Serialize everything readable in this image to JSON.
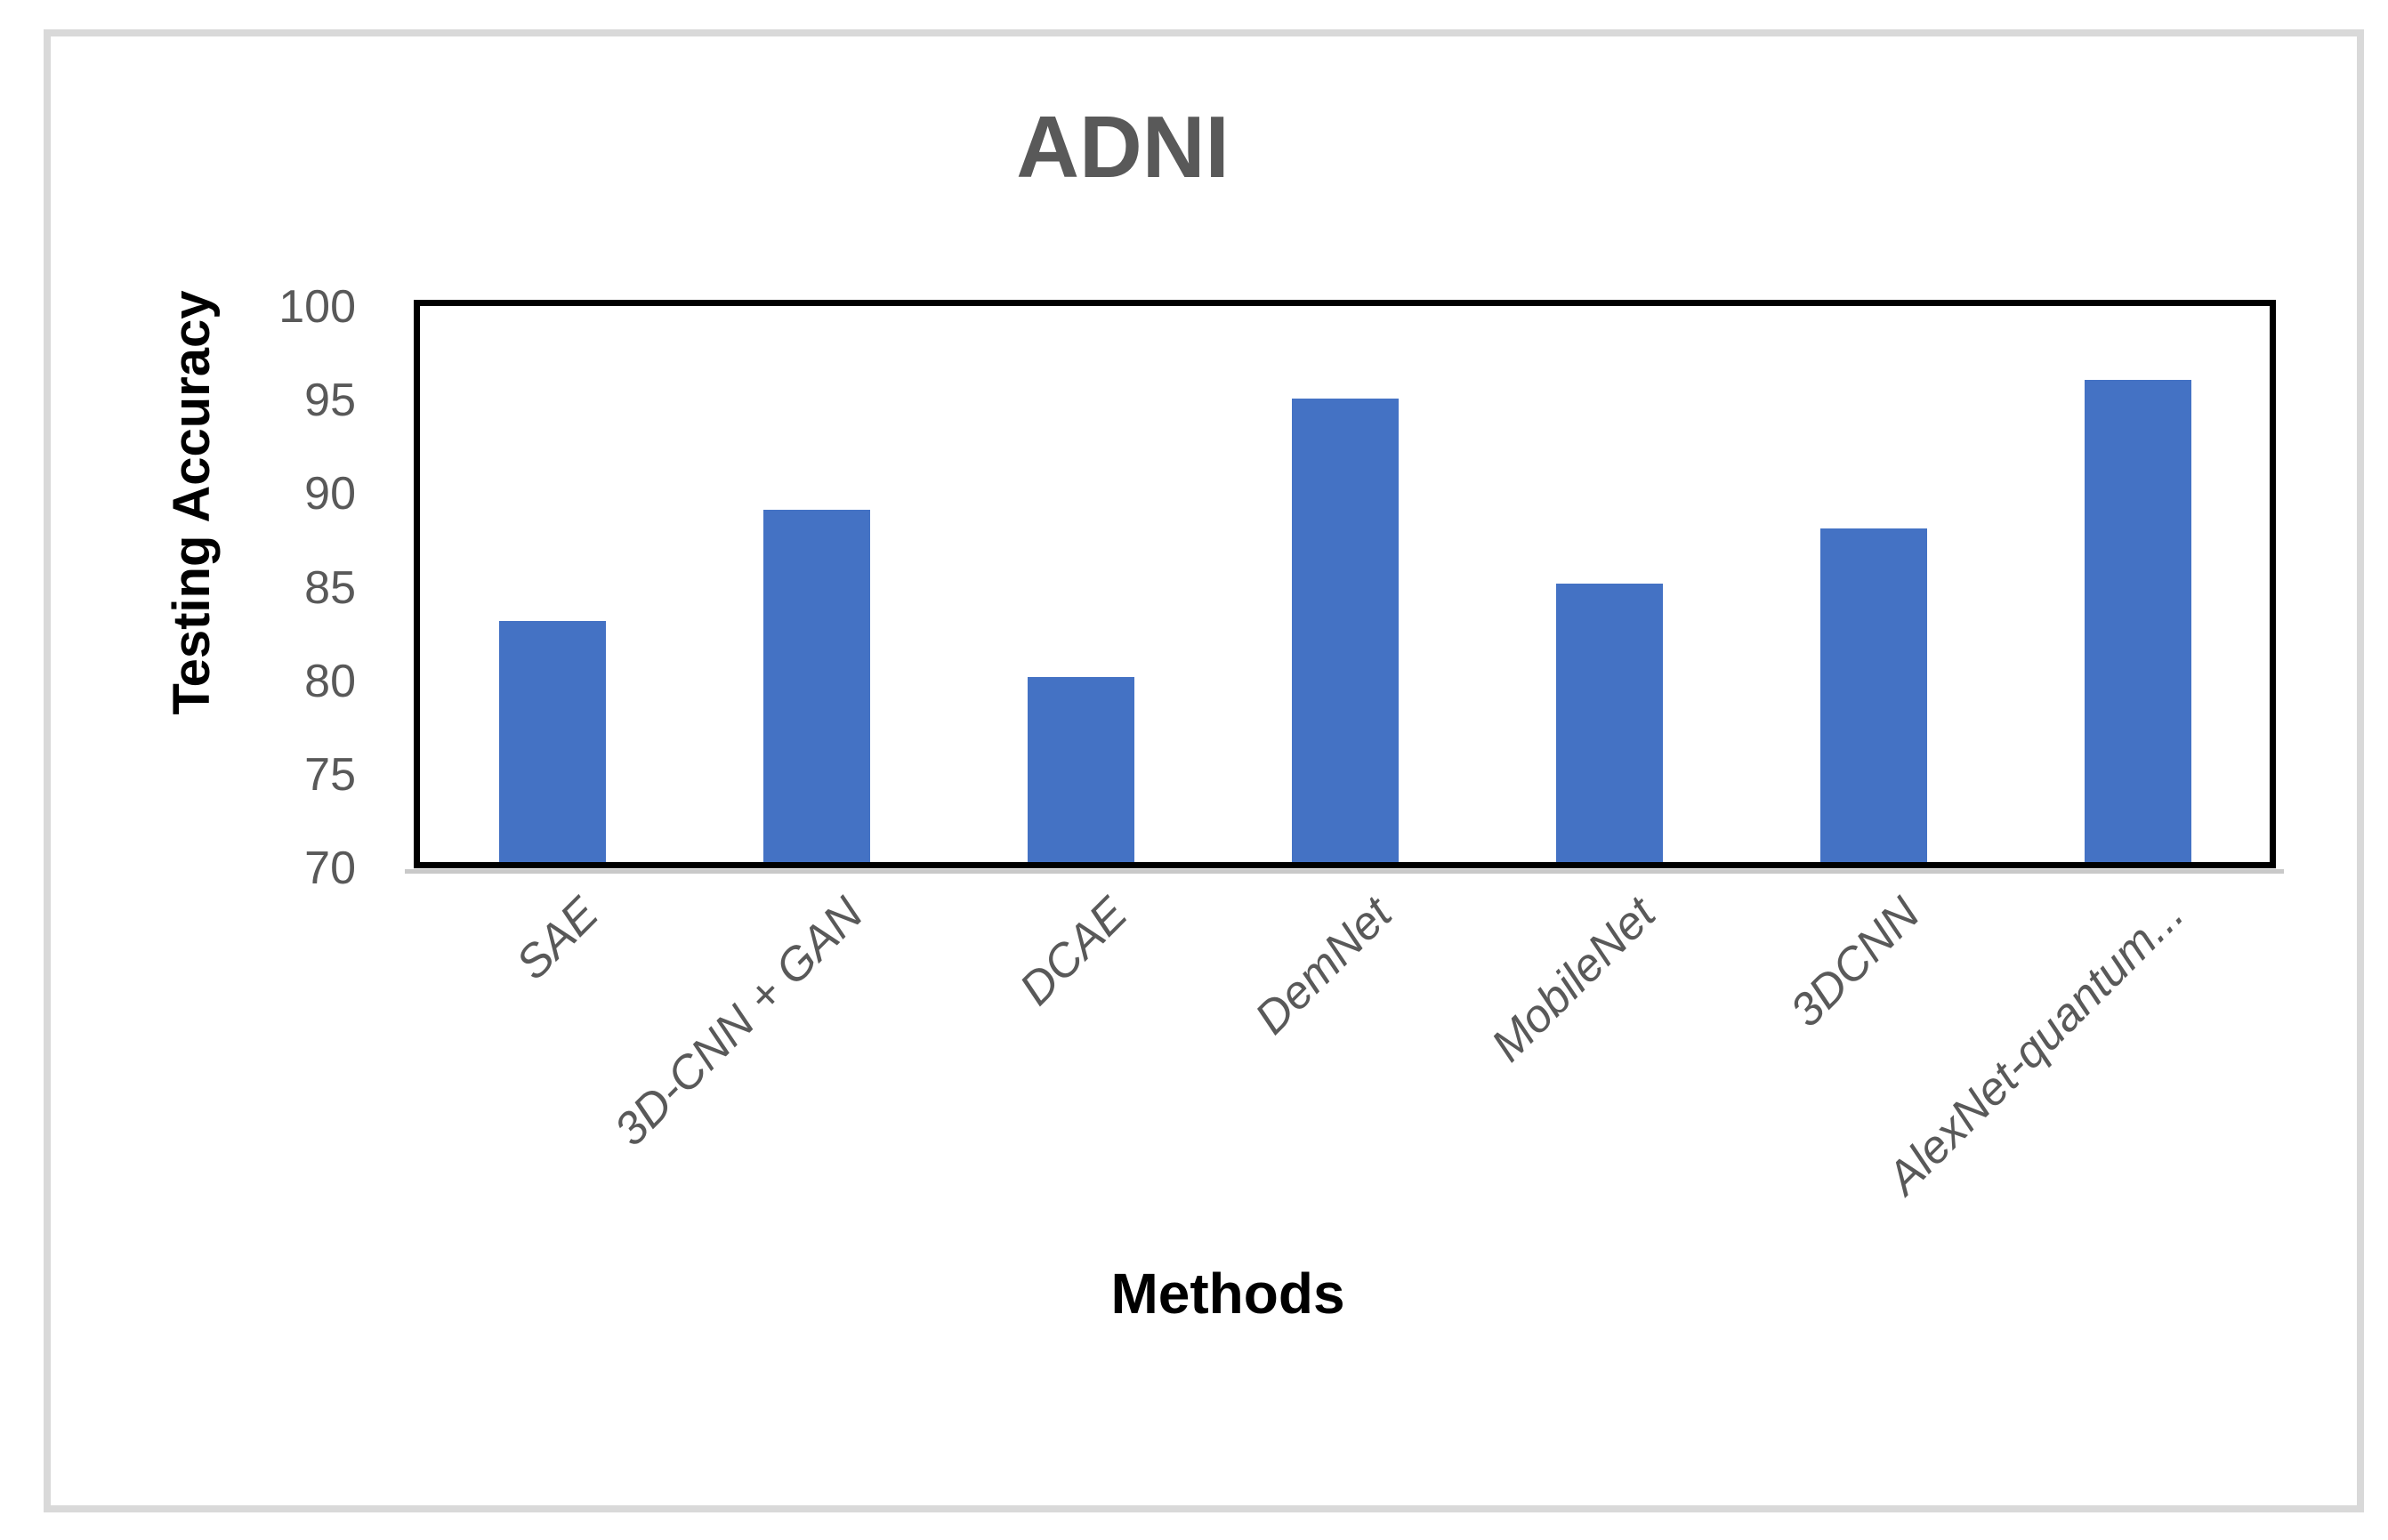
{
  "figure": {
    "title": "ADNI"
  },
  "y_axis": {
    "title": "Testing Accuracy",
    "tick_labels": [
      "100",
      "95",
      "90",
      "85",
      "80",
      "75",
      "70"
    ]
  },
  "x_axis": {
    "title": "Methods"
  },
  "chart_data": {
    "type": "bar",
    "title": "ADNI",
    "xlabel": "Methods",
    "ylabel": "Testing Accuracy",
    "categories": [
      "SAE",
      "3D-CNN + GAN",
      "DCAE",
      "DemNet",
      "MobileNet",
      "3DCNN",
      "AlexNet-quantum..."
    ],
    "values": [
      83,
      89,
      80,
      95,
      85,
      88,
      96
    ],
    "ylim": [
      70,
      100
    ],
    "ytick_step": 5,
    "grid": false,
    "legend": false,
    "bar_color": "#4472C4",
    "plot_border_color": "#000000",
    "frame_border_color": "#d9d9d9",
    "tick_text_color": "#595959",
    "title_text_color": "#595959"
  }
}
